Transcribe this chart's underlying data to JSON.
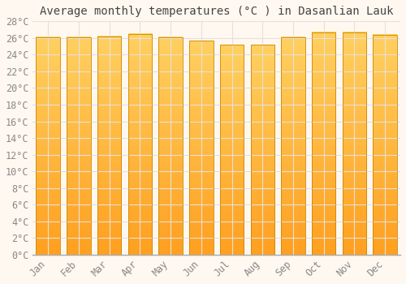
{
  "title": "Average monthly temperatures (°C ) in Dasanlian Lauk",
  "months": [
    "Jan",
    "Feb",
    "Mar",
    "Apr",
    "May",
    "Jun",
    "Jul",
    "Aug",
    "Sep",
    "Oct",
    "Nov",
    "Dec"
  ],
  "values": [
    26.1,
    26.1,
    26.2,
    26.5,
    26.1,
    25.7,
    25.2,
    25.2,
    26.1,
    26.7,
    26.7,
    26.4
  ],
  "bar_color_bottom": "#FFA020",
  "bar_color_top": "#FFD060",
  "bar_edge_color": "#CC8800",
  "background_color": "#FFF8F0",
  "plot_bg_color": "#FFF8F0",
  "grid_color": "#E8E0D8",
  "ylim": [
    0,
    28
  ],
  "ytick_step": 2,
  "title_fontsize": 10,
  "tick_fontsize": 8.5,
  "font_family": "monospace"
}
